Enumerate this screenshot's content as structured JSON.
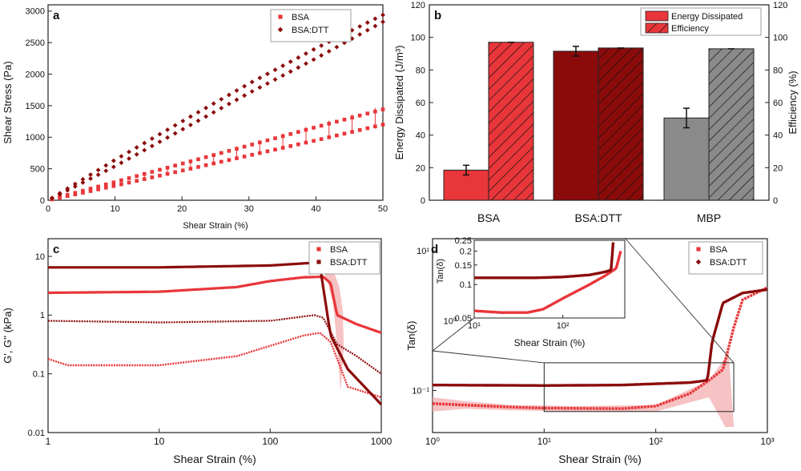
{
  "colors": {
    "bsa": "#e8363a",
    "bsadtt": "#8b0b0b",
    "mbp": "#8a8a8a",
    "band": "#f2a8aa"
  },
  "chart_data": [
    {
      "panel": "a",
      "type": "scatter",
      "xlabel": "Shear Strain (%)",
      "ylabel": "Shear Stress (Pa)",
      "xlim": [
        0,
        50
      ],
      "ylim": [
        0,
        3100
      ],
      "xticks": [
        0,
        10,
        20,
        30,
        40,
        50
      ],
      "yticks": [
        0,
        500,
        1000,
        1500,
        2000,
        2500,
        3000
      ],
      "legend_position": "top-right",
      "series": [
        {
          "name": "BSA",
          "upper": [
            [
              0,
              0
            ],
            [
              10,
              290
            ],
            [
              20,
              580
            ],
            [
              30,
              870
            ],
            [
              40,
              1160
            ],
            [
              50,
              1440
            ]
          ],
          "lower": [
            [
              0,
              0
            ],
            [
              10,
              230
            ],
            [
              20,
              470
            ],
            [
              30,
              710
            ],
            [
              40,
              950
            ],
            [
              50,
              1200
            ]
          ]
        },
        {
          "name": "BSA:DTT",
          "upper": [
            [
              0,
              0
            ],
            [
              10,
              640
            ],
            [
              20,
              1250
            ],
            [
              30,
              1850
            ],
            [
              40,
              2410
            ],
            [
              50,
              2940
            ]
          ],
          "lower": [
            [
              0,
              0
            ],
            [
              10,
              540
            ],
            [
              20,
              1120
            ],
            [
              30,
              1700
            ],
            [
              40,
              2250
            ],
            [
              50,
              2830
            ]
          ]
        }
      ]
    },
    {
      "panel": "b",
      "type": "bar",
      "categories": [
        "BSA",
        "BSA:DTT",
        "MBP"
      ],
      "ylabel": "Energy Dissipated (J/m³)",
      "ylabel_right": "Efficiency (%)",
      "ylim": [
        0,
        120
      ],
      "yticks": [
        0,
        20,
        40,
        60,
        80,
        100,
        120
      ],
      "legend_position": "top-right",
      "series": [
        {
          "name": "Energy Dissipated",
          "values": [
            18.5,
            91.5,
            50.5
          ],
          "errors": [
            3,
            3,
            6
          ]
        },
        {
          "name": "Efficiency",
          "values": [
            97,
            93.5,
            93
          ],
          "errors": [
            0.5,
            0.5,
            0.5
          ]
        }
      ]
    },
    {
      "panel": "c",
      "type": "scatter",
      "xlabel": "Shear Strain (%)",
      "ylabel": "G', G'' (kPa)",
      "xscale": "log",
      "yscale": "log",
      "xlim": [
        1,
        1000
      ],
      "ylim": [
        0.01,
        20
      ],
      "xticks": [
        1,
        10,
        100,
        1000
      ],
      "xtick_labels": [
        "1",
        "10",
        "100",
        "1000"
      ],
      "yticks": [
        0.01,
        0.1,
        1,
        10
      ],
      "ytick_labels": [
        "0.01",
        "0.1",
        "1",
        "10"
      ],
      "legend_position": "top-right",
      "series": [
        {
          "name": "BSA G'",
          "points": [
            [
              1,
              2.4
            ],
            [
              10,
              2.5
            ],
            [
              50,
              3.0
            ],
            [
              100,
              3.8
            ],
            [
              200,
              4.4
            ],
            [
              300,
              4.5
            ],
            [
              350,
              3.5
            ],
            [
              400,
              1.0
            ],
            [
              600,
              0.7
            ],
            [
              1000,
              0.5
            ]
          ]
        },
        {
          "name": "BSA G''",
          "points": [
            [
              1,
              0.18
            ],
            [
              1.5,
              0.14
            ],
            [
              10,
              0.14
            ],
            [
              50,
              0.2
            ],
            [
              100,
              0.3
            ],
            [
              200,
              0.45
            ],
            [
              280,
              0.5
            ],
            [
              350,
              0.35
            ],
            [
              500,
              0.06
            ],
            [
              1000,
              0.04
            ]
          ]
        },
        {
          "name": "BSA:DTT G'",
          "points": [
            [
              1,
              6.5
            ],
            [
              10,
              6.5
            ],
            [
              100,
              7.0
            ],
            [
              250,
              7.8
            ],
            [
              280,
              7.0
            ],
            [
              350,
              0.45
            ],
            [
              500,
              0.12
            ],
            [
              1000,
              0.03
            ]
          ]
        },
        {
          "name": "BSA:DTT G''",
          "points": [
            [
              1,
              0.8
            ],
            [
              10,
              0.75
            ],
            [
              100,
              0.8
            ],
            [
              250,
              1.0
            ],
            [
              300,
              0.9
            ],
            [
              400,
              0.32
            ],
            [
              600,
              0.2
            ],
            [
              1000,
              0.1
            ]
          ]
        }
      ]
    },
    {
      "panel": "d",
      "type": "scatter",
      "xlabel": "Shear Strain (%)",
      "ylabel": "Tan(δ)",
      "xscale": "log",
      "yscale": "log",
      "xlim": [
        1,
        1000
      ],
      "ylim": [
        0.025,
        15
      ],
      "xticks": [
        1,
        10,
        100,
        1000
      ],
      "xtick_labels": [
        "10⁰",
        "10¹",
        "10²",
        "10³"
      ],
      "yticks": [
        0.1,
        10
      ],
      "ytick_labels": [
        "10⁻¹",
        "10¹"
      ],
      "ytick_mid_value": 1,
      "ytick_mid_label": "10⁰",
      "legend_position": "top-right",
      "series": [
        {
          "name": "BSA",
          "points": [
            [
              1,
              0.065
            ],
            [
              5,
              0.058
            ],
            [
              10,
              0.056
            ],
            [
              50,
              0.055
            ],
            [
              100,
              0.06
            ],
            [
              200,
              0.09
            ],
            [
              300,
              0.14
            ],
            [
              400,
              0.2
            ],
            [
              500,
              0.8
            ],
            [
              600,
              2.0
            ],
            [
              1000,
              3.0
            ]
          ]
        },
        {
          "name": "BSA:DTT",
          "points": [
            [
              1,
              0.12
            ],
            [
              10,
              0.118
            ],
            [
              50,
              0.12
            ],
            [
              100,
              0.125
            ],
            [
              200,
              0.13
            ],
            [
              290,
              0.14
            ],
            [
              320,
              0.5
            ],
            [
              400,
              1.8
            ],
            [
              600,
              2.5
            ],
            [
              1000,
              2.8
            ]
          ]
        }
      ],
      "inset": {
        "xlabel": "Shear Strain (%)",
        "ylabel": "Tan(δ)",
        "xlim": [
          10,
          500
        ],
        "ylim": [
          0.05,
          0.25
        ],
        "xticks": [
          10,
          100
        ],
        "xtick_labels": [
          "10¹",
          "10²"
        ],
        "yticks": [
          0.05,
          0.1,
          0.15,
          0.2,
          0.25
        ],
        "ytick_labels": [
          "0.05",
          "0.1",
          "0.15",
          "0.2",
          "0.25"
        ],
        "series": [
          {
            "name": "BSA",
            "points": [
              [
                10,
                0.058
              ],
              [
                20,
                0.056
              ],
              [
                40,
                0.056
              ],
              [
                60,
                0.06
              ],
              [
                100,
                0.075
              ],
              [
                200,
                0.1
              ],
              [
                300,
                0.12
              ],
              [
                400,
                0.14
              ],
              [
                450,
                0.2
              ]
            ]
          },
          {
            "name": "BSA:DTT",
            "points": [
              [
                10,
                0.115
              ],
              [
                50,
                0.115
              ],
              [
                100,
                0.117
              ],
              [
                200,
                0.122
              ],
              [
                300,
                0.13
              ],
              [
                350,
                0.135
              ],
              [
                370,
                0.24
              ]
            ]
          }
        ]
      }
    }
  ]
}
